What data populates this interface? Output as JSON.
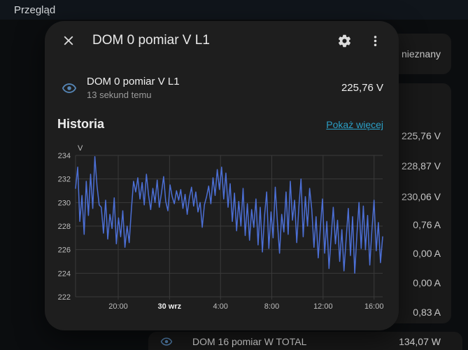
{
  "page": {
    "top_bar_title": "Przegląd"
  },
  "background": {
    "unknown_card_value": "nieznany",
    "sensor_values": [
      "225,76 V",
      "228,87 V",
      "230,06 V",
      "0,76 A",
      "0,00 A",
      "0,00 A",
      "0,83 A"
    ],
    "bottom_row": {
      "name": "DOM 16 pomiar W TOTAL",
      "value": "134,07 W"
    }
  },
  "dialog": {
    "title": "DOM 0 pomiar V L1",
    "entity": {
      "name": "DOM 0 pomiar V L1",
      "last_changed": "13 sekund temu",
      "state": "225,76 V"
    },
    "history_heading": "Historia",
    "show_more_label": "Pokaż więcej"
  },
  "icons": {
    "close": "close-icon",
    "settings": "gear-icon",
    "overflow_menu": "dots-vertical-icon",
    "entity_state": "eye-icon"
  },
  "colors": {
    "page_bg": "#0b0d0f",
    "top_bar_bg": "#10151b",
    "card_bg": "#191919",
    "dialog_bg": "#1e1e1e",
    "accent_link": "#2b9fc6",
    "eye_icon": "#5585b5",
    "chart_line": "#4c6fd5"
  },
  "chart_data": {
    "type": "line",
    "title": "Historia",
    "unit": "V",
    "xlabel": "",
    "ylabel": "V",
    "ylim": [
      222,
      234
    ],
    "yticks": [
      234,
      232,
      230,
      228,
      226,
      224,
      222
    ],
    "xticks": [
      {
        "pos": 0.139,
        "label": "20:00"
      },
      {
        "pos": 0.306,
        "label": "30 wrz",
        "bold": true
      },
      {
        "pos": 0.472,
        "label": "4:00"
      },
      {
        "pos": 0.639,
        "label": "8:00"
      },
      {
        "pos": 0.806,
        "label": "12:00"
      },
      {
        "pos": 0.972,
        "label": "16:00"
      }
    ],
    "grid": true,
    "legend": false,
    "color": "#4c6fd5",
    "grid_color": "#3a3a3a",
    "tick_color": "#bdbdbd",
    "tick_bold_color": "#ededed",
    "values": [
      231.2,
      233.0,
      228.4,
      230.6,
      227.3,
      231.8,
      228.9,
      232.4,
      229.5,
      233.9,
      231.4,
      229.8,
      229.6,
      227.4,
      230.2,
      226.9,
      229.0,
      227.8,
      230.4,
      226.5,
      228.7,
      227.1,
      229.3,
      226.2,
      228.0,
      226.6,
      229.4,
      231.8,
      230.9,
      232.1,
      230.3,
      231.7,
      229.8,
      232.4,
      230.6,
      229.4,
      231.2,
      230.0,
      231.9,
      229.6,
      230.8,
      232.2,
      230.1,
      229.3,
      231.5,
      230.5,
      229.9,
      231.0,
      230.2,
      231.1,
      229.5,
      230.7,
      229.0,
      230.4,
      231.3,
      229.7,
      230.9,
      229.2,
      230.0,
      227.9,
      229.8,
      230.5,
      231.4,
      229.9,
      232.1,
      230.6,
      232.8,
      231.1,
      233.0,
      230.3,
      232.5,
      229.6,
      231.6,
      228.4,
      230.8,
      227.6,
      230.1,
      228.0,
      231.2,
      227.2,
      229.9,
      226.8,
      229.4,
      227.9,
      230.3,
      226.4,
      229.6,
      225.8,
      228.9,
      230.9,
      226.1,
      229.2,
      227.0,
      231.3,
      228.3,
      225.7,
      229.0,
      227.5,
      230.9,
      227.3,
      231.8,
      228.5,
      230.2,
      226.6,
      229.7,
      232.0,
      227.1,
      230.5,
      228.0,
      231.2,
      229.4,
      226.2,
      228.8,
      225.3,
      227.9,
      230.3,
      225.7,
      228.4,
      224.4,
      227.0,
      229.6,
      226.5,
      228.5,
      225.0,
      227.7,
      224.2,
      226.9,
      229.5,
      225.5,
      228.8,
      224.0,
      227.3,
      230.0,
      226.1,
      229.7,
      226.0,
      228.9,
      224.7,
      227.7,
      230.2,
      225.9,
      228.3,
      224.9,
      227.1
    ]
  }
}
